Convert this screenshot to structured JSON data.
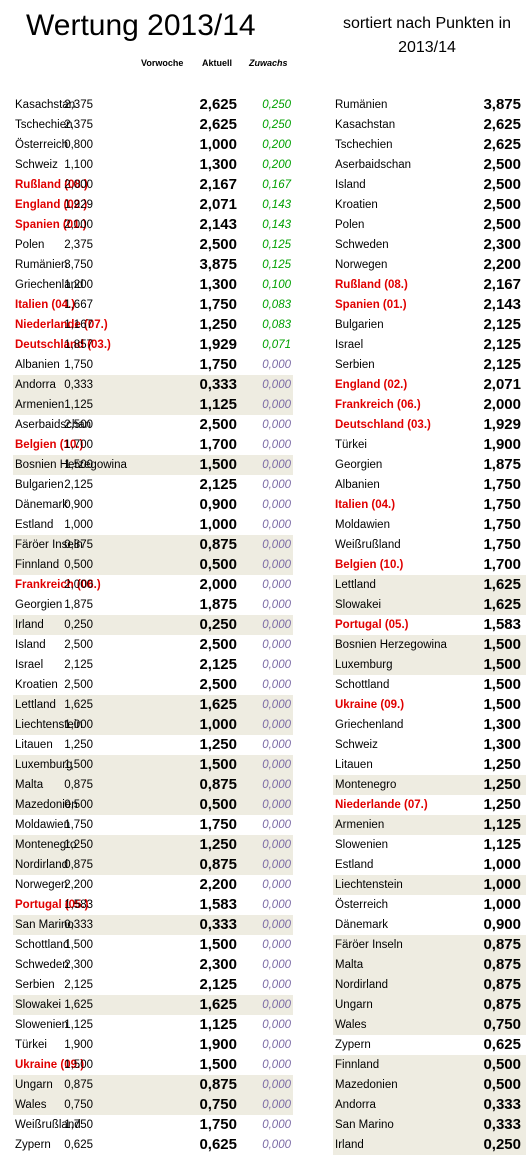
{
  "title": "Wertung 2013/14",
  "subtitle": "sortiert nach Punkten in 2013/14",
  "headers": {
    "vorwoche": "Vorwoche",
    "aktuell": "Aktuell",
    "zuwachs": "Zuwachs"
  },
  "colors": {
    "highlight_red": "#e00000",
    "positive_green": "#00a000",
    "zero_purple": "#7b6aa6",
    "shade": "#eeece1"
  },
  "left_rows": [
    {
      "name": "Kasachstan",
      "vorwoche": "2,375",
      "aktuell": "2,625",
      "zuwachs": "0,250",
      "shade": false,
      "red": false
    },
    {
      "name": "Tschechien",
      "vorwoche": "2,375",
      "aktuell": "2,625",
      "zuwachs": "0,250",
      "shade": false,
      "red": false
    },
    {
      "name": "Österreich",
      "vorwoche": "0,800",
      "aktuell": "1,000",
      "zuwachs": "0,200",
      "shade": false,
      "red": false
    },
    {
      "name": "Schweiz",
      "vorwoche": "1,100",
      "aktuell": "1,300",
      "zuwachs": "0,200",
      "shade": false,
      "red": false
    },
    {
      "name": "Rußland (08.)",
      "vorwoche": "2,000",
      "aktuell": "2,167",
      "zuwachs": "0,167",
      "shade": false,
      "red": true
    },
    {
      "name": "England (02.)",
      "vorwoche": "1,929",
      "aktuell": "2,071",
      "zuwachs": "0,143",
      "shade": false,
      "red": true
    },
    {
      "name": "Spanien (01.)",
      "vorwoche": "2,000",
      "aktuell": "2,143",
      "zuwachs": "0,143",
      "shade": false,
      "red": true
    },
    {
      "name": "Polen",
      "vorwoche": "2,375",
      "aktuell": "2,500",
      "zuwachs": "0,125",
      "shade": false,
      "red": false
    },
    {
      "name": "Rumänien",
      "vorwoche": "3,750",
      "aktuell": "3,875",
      "zuwachs": "0,125",
      "shade": false,
      "red": false
    },
    {
      "name": "Griechenland",
      "vorwoche": "1,200",
      "aktuell": "1,300",
      "zuwachs": "0,100",
      "shade": false,
      "red": false
    },
    {
      "name": "Italien (04.)",
      "vorwoche": "1,667",
      "aktuell": "1,750",
      "zuwachs": "0,083",
      "shade": false,
      "red": true
    },
    {
      "name": "Niederlande (07.)",
      "vorwoche": "1,167",
      "aktuell": "1,250",
      "zuwachs": "0,083",
      "shade": false,
      "red": true
    },
    {
      "name": "Deutschland (03.)",
      "vorwoche": "1,857",
      "aktuell": "1,929",
      "zuwachs": "0,071",
      "shade": false,
      "red": true
    },
    {
      "name": "Albanien",
      "vorwoche": "1,750",
      "aktuell": "1,750",
      "zuwachs": "0,000",
      "shade": false,
      "red": false
    },
    {
      "name": "Andorra",
      "vorwoche": "0,333",
      "aktuell": "0,333",
      "zuwachs": "0,000",
      "shade": true,
      "red": false
    },
    {
      "name": "Armenien",
      "vorwoche": "1,125",
      "aktuell": "1,125",
      "zuwachs": "0,000",
      "shade": true,
      "red": false
    },
    {
      "name": "Aserbaidschan",
      "vorwoche": "2,500",
      "aktuell": "2,500",
      "zuwachs": "0,000",
      "shade": false,
      "red": false
    },
    {
      "name": "Belgien (10.)",
      "vorwoche": "1,700",
      "aktuell": "1,700",
      "zuwachs": "0,000",
      "shade": false,
      "red": true
    },
    {
      "name": "Bosnien Herzegowina",
      "vorwoche": "1,500",
      "aktuell": "1,500",
      "zuwachs": "0,000",
      "shade": true,
      "red": false
    },
    {
      "name": "Bulgarien",
      "vorwoche": "2,125",
      "aktuell": "2,125",
      "zuwachs": "0,000",
      "shade": false,
      "red": false
    },
    {
      "name": "Dänemark",
      "vorwoche": "0,900",
      "aktuell": "0,900",
      "zuwachs": "0,000",
      "shade": false,
      "red": false
    },
    {
      "name": "Estland",
      "vorwoche": "1,000",
      "aktuell": "1,000",
      "zuwachs": "0,000",
      "shade": false,
      "red": false
    },
    {
      "name": "Färöer Inseln",
      "vorwoche": "0,875",
      "aktuell": "0,875",
      "zuwachs": "0,000",
      "shade": true,
      "red": false
    },
    {
      "name": "Finnland",
      "vorwoche": "0,500",
      "aktuell": "0,500",
      "zuwachs": "0,000",
      "shade": true,
      "red": false
    },
    {
      "name": "Frankreich (06.)",
      "vorwoche": "2,000",
      "aktuell": "2,000",
      "zuwachs": "0,000",
      "shade": false,
      "red": true
    },
    {
      "name": "Georgien",
      "vorwoche": "1,875",
      "aktuell": "1,875",
      "zuwachs": "0,000",
      "shade": false,
      "red": false
    },
    {
      "name": "Irland",
      "vorwoche": "0,250",
      "aktuell": "0,250",
      "zuwachs": "0,000",
      "shade": true,
      "red": false
    },
    {
      "name": "Island",
      "vorwoche": "2,500",
      "aktuell": "2,500",
      "zuwachs": "0,000",
      "shade": false,
      "red": false
    },
    {
      "name": "Israel",
      "vorwoche": "2,125",
      "aktuell": "2,125",
      "zuwachs": "0,000",
      "shade": false,
      "red": false
    },
    {
      "name": "Kroatien",
      "vorwoche": "2,500",
      "aktuell": "2,500",
      "zuwachs": "0,000",
      "shade": false,
      "red": false
    },
    {
      "name": "Lettland",
      "vorwoche": "1,625",
      "aktuell": "1,625",
      "zuwachs": "0,000",
      "shade": true,
      "red": false
    },
    {
      "name": "Liechtenstein",
      "vorwoche": "1,000",
      "aktuell": "1,000",
      "zuwachs": "0,000",
      "shade": true,
      "red": false
    },
    {
      "name": "Litauen",
      "vorwoche": "1,250",
      "aktuell": "1,250",
      "zuwachs": "0,000",
      "shade": false,
      "red": false
    },
    {
      "name": "Luxemburg",
      "vorwoche": "1,500",
      "aktuell": "1,500",
      "zuwachs": "0,000",
      "shade": true,
      "red": false
    },
    {
      "name": "Malta",
      "vorwoche": "0,875",
      "aktuell": "0,875",
      "zuwachs": "0,000",
      "shade": true,
      "red": false
    },
    {
      "name": "Mazedonien",
      "vorwoche": "0,500",
      "aktuell": "0,500",
      "zuwachs": "0,000",
      "shade": true,
      "red": false
    },
    {
      "name": "Moldawien",
      "vorwoche": "1,750",
      "aktuell": "1,750",
      "zuwachs": "0,000",
      "shade": false,
      "red": false
    },
    {
      "name": "Montenegro",
      "vorwoche": "1,250",
      "aktuell": "1,250",
      "zuwachs": "0,000",
      "shade": true,
      "red": false
    },
    {
      "name": "Nordirland",
      "vorwoche": "0,875",
      "aktuell": "0,875",
      "zuwachs": "0,000",
      "shade": true,
      "red": false
    },
    {
      "name": "Norwegen",
      "vorwoche": "2,200",
      "aktuell": "2,200",
      "zuwachs": "0,000",
      "shade": false,
      "red": false
    },
    {
      "name": "Portugal (05.)",
      "vorwoche": "1,583",
      "aktuell": "1,583",
      "zuwachs": "0,000",
      "shade": false,
      "red": true
    },
    {
      "name": "San Marino",
      "vorwoche": "0,333",
      "aktuell": "0,333",
      "zuwachs": "0,000",
      "shade": true,
      "red": false
    },
    {
      "name": "Schottland",
      "vorwoche": "1,500",
      "aktuell": "1,500",
      "zuwachs": "0,000",
      "shade": false,
      "red": false
    },
    {
      "name": "Schweden",
      "vorwoche": "2,300",
      "aktuell": "2,300",
      "zuwachs": "0,000",
      "shade": false,
      "red": false
    },
    {
      "name": "Serbien",
      "vorwoche": "2,125",
      "aktuell": "2,125",
      "zuwachs": "0,000",
      "shade": false,
      "red": false
    },
    {
      "name": "Slowakei",
      "vorwoche": "1,625",
      "aktuell": "1,625",
      "zuwachs": "0,000",
      "shade": true,
      "red": false
    },
    {
      "name": "Slowenien",
      "vorwoche": "1,125",
      "aktuell": "1,125",
      "zuwachs": "0,000",
      "shade": false,
      "red": false
    },
    {
      "name": "Türkei",
      "vorwoche": "1,900",
      "aktuell": "1,900",
      "zuwachs": "0,000",
      "shade": false,
      "red": false
    },
    {
      "name": "Ukraine (09.)",
      "vorwoche": "1,500",
      "aktuell": "1,500",
      "zuwachs": "0,000",
      "shade": false,
      "red": true
    },
    {
      "name": "Ungarn",
      "vorwoche": "0,875",
      "aktuell": "0,875",
      "zuwachs": "0,000",
      "shade": true,
      "red": false
    },
    {
      "name": "Wales",
      "vorwoche": "0,750",
      "aktuell": "0,750",
      "zuwachs": "0,000",
      "shade": true,
      "red": false
    },
    {
      "name": "Weißrußland",
      "vorwoche": "1,750",
      "aktuell": "1,750",
      "zuwachs": "0,000",
      "shade": false,
      "red": false
    },
    {
      "name": "Zypern",
      "vorwoche": "0,625",
      "aktuell": "0,625",
      "zuwachs": "0,000",
      "shade": false,
      "red": false
    }
  ],
  "right_rows": [
    {
      "name": "Rumänien",
      "aktuell": "3,875",
      "shade": false,
      "red": false
    },
    {
      "name": "Kasachstan",
      "aktuell": "2,625",
      "shade": false,
      "red": false
    },
    {
      "name": "Tschechien",
      "aktuell": "2,625",
      "shade": false,
      "red": false
    },
    {
      "name": "Aserbaidschan",
      "aktuell": "2,500",
      "shade": false,
      "red": false
    },
    {
      "name": "Island",
      "aktuell": "2,500",
      "shade": false,
      "red": false
    },
    {
      "name": "Kroatien",
      "aktuell": "2,500",
      "shade": false,
      "red": false
    },
    {
      "name": "Polen",
      "aktuell": "2,500",
      "shade": false,
      "red": false
    },
    {
      "name": "Schweden",
      "aktuell": "2,300",
      "shade": false,
      "red": false
    },
    {
      "name": "Norwegen",
      "aktuell": "2,200",
      "shade": false,
      "red": false
    },
    {
      "name": "Rußland (08.)",
      "aktuell": "2,167",
      "shade": false,
      "red": true
    },
    {
      "name": "Spanien (01.)",
      "aktuell": "2,143",
      "shade": false,
      "red": true
    },
    {
      "name": "Bulgarien",
      "aktuell": "2,125",
      "shade": false,
      "red": false
    },
    {
      "name": "Israel",
      "aktuell": "2,125",
      "shade": false,
      "red": false
    },
    {
      "name": "Serbien",
      "aktuell": "2,125",
      "shade": false,
      "red": false
    },
    {
      "name": "England (02.)",
      "aktuell": "2,071",
      "shade": false,
      "red": true
    },
    {
      "name": "Frankreich (06.)",
      "aktuell": "2,000",
      "shade": false,
      "red": true
    },
    {
      "name": "Deutschland (03.)",
      "aktuell": "1,929",
      "shade": false,
      "red": true
    },
    {
      "name": "Türkei",
      "aktuell": "1,900",
      "shade": false,
      "red": false
    },
    {
      "name": "Georgien",
      "aktuell": "1,875",
      "shade": false,
      "red": false
    },
    {
      "name": "Albanien",
      "aktuell": "1,750",
      "shade": false,
      "red": false
    },
    {
      "name": "Italien (04.)",
      "aktuell": "1,750",
      "shade": false,
      "red": true
    },
    {
      "name": "Moldawien",
      "aktuell": "1,750",
      "shade": false,
      "red": false
    },
    {
      "name": "Weißrußland",
      "aktuell": "1,750",
      "shade": false,
      "red": false
    },
    {
      "name": "Belgien (10.)",
      "aktuell": "1,700",
      "shade": false,
      "red": true
    },
    {
      "name": "Lettland",
      "aktuell": "1,625",
      "shade": true,
      "red": false
    },
    {
      "name": "Slowakei",
      "aktuell": "1,625",
      "shade": true,
      "red": false
    },
    {
      "name": "Portugal (05.)",
      "aktuell": "1,583",
      "shade": false,
      "red": true
    },
    {
      "name": "Bosnien Herzegowina",
      "aktuell": "1,500",
      "shade": true,
      "red": false
    },
    {
      "name": "Luxemburg",
      "aktuell": "1,500",
      "shade": true,
      "red": false
    },
    {
      "name": "Schottland",
      "aktuell": "1,500",
      "shade": false,
      "red": false
    },
    {
      "name": "Ukraine (09.)",
      "aktuell": "1,500",
      "shade": false,
      "red": true
    },
    {
      "name": "Griechenland",
      "aktuell": "1,300",
      "shade": false,
      "red": false
    },
    {
      "name": "Schweiz",
      "aktuell": "1,300",
      "shade": false,
      "red": false
    },
    {
      "name": "Litauen",
      "aktuell": "1,250",
      "shade": false,
      "red": false
    },
    {
      "name": "Montenegro",
      "aktuell": "1,250",
      "shade": true,
      "red": false
    },
    {
      "name": "Niederlande (07.)",
      "aktuell": "1,250",
      "shade": false,
      "red": true
    },
    {
      "name": "Armenien",
      "aktuell": "1,125",
      "shade": true,
      "red": false
    },
    {
      "name": "Slowenien",
      "aktuell": "1,125",
      "shade": false,
      "red": false
    },
    {
      "name": "Estland",
      "aktuell": "1,000",
      "shade": false,
      "red": false
    },
    {
      "name": "Liechtenstein",
      "aktuell": "1,000",
      "shade": true,
      "red": false
    },
    {
      "name": "Österreich",
      "aktuell": "1,000",
      "shade": false,
      "red": false
    },
    {
      "name": "Dänemark",
      "aktuell": "0,900",
      "shade": false,
      "red": false
    },
    {
      "name": "Färöer Inseln",
      "aktuell": "0,875",
      "shade": true,
      "red": false
    },
    {
      "name": "Malta",
      "aktuell": "0,875",
      "shade": true,
      "red": false
    },
    {
      "name": "Nordirland",
      "aktuell": "0,875",
      "shade": true,
      "red": false
    },
    {
      "name": "Ungarn",
      "aktuell": "0,875",
      "shade": true,
      "red": false
    },
    {
      "name": "Wales",
      "aktuell": "0,750",
      "shade": true,
      "red": false
    },
    {
      "name": "Zypern",
      "aktuell": "0,625",
      "shade": false,
      "red": false
    },
    {
      "name": "Finnland",
      "aktuell": "0,500",
      "shade": true,
      "red": false
    },
    {
      "name": "Mazedonien",
      "aktuell": "0,500",
      "shade": true,
      "red": false
    },
    {
      "name": "Andorra",
      "aktuell": "0,333",
      "shade": true,
      "red": false
    },
    {
      "name": "San Marino",
      "aktuell": "0,333",
      "shade": true,
      "red": false
    },
    {
      "name": "Irland",
      "aktuell": "0,250",
      "shade": true,
      "red": false
    }
  ]
}
